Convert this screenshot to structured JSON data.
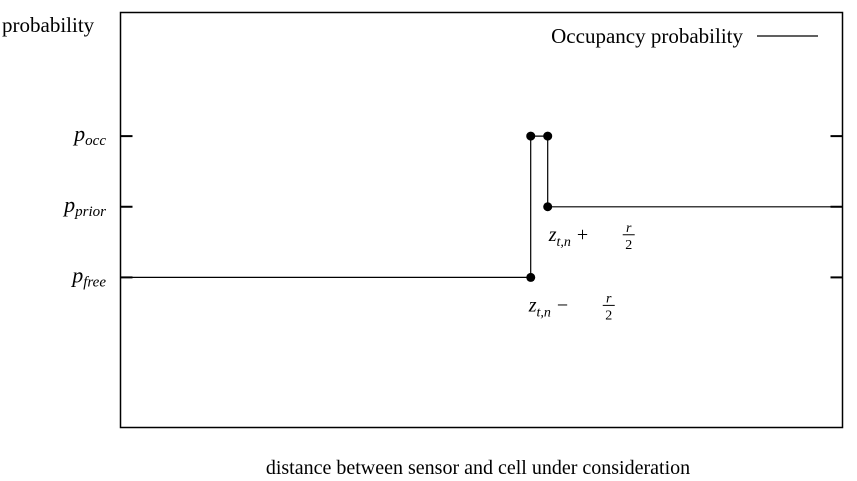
{
  "chart_data": {
    "type": "line",
    "ylabel": "probability",
    "xlabel": "distance between sensor and cell under consideration",
    "legend": {
      "label": "Occupancy probability",
      "position": "top-right"
    },
    "y_levels": [
      {
        "key": "occ",
        "symbol": "p",
        "subscript": "occ",
        "value": 0.9
      },
      {
        "key": "prior",
        "symbol": "p",
        "subscript": "prior",
        "value": 0.5
      },
      {
        "key": "free",
        "symbol": "p",
        "subscript": "free",
        "value": 0.1
      }
    ],
    "ylim": [
      -0.75,
      1.6
    ],
    "xlim": [
      0,
      1
    ],
    "series": [
      {
        "name": "Occupancy probability",
        "x": [
          0,
          0.5682,
          0.5682,
          0.5917,
          0.5917,
          1.0
        ],
        "y": [
          0.1,
          0.1,
          0.9,
          0.9,
          0.5,
          0.5
        ]
      }
    ],
    "markers": [
      {
        "x": 0.5682,
        "y": 0.1
      },
      {
        "x": 0.5682,
        "y": 0.9
      },
      {
        "x": 0.5917,
        "y": 0.9
      },
      {
        "x": 0.5917,
        "y": 0.5
      }
    ],
    "annotations": [
      {
        "id": "lower",
        "x": 0.5682,
        "y": 0.1,
        "base": "z",
        "subscript": "t,n",
        "op": "−",
        "num": "r",
        "den": "2"
      },
      {
        "id": "upper",
        "x": 0.5917,
        "y": 0.5,
        "base": "z",
        "subscript": "t,n",
        "op": "+",
        "num": "r",
        "den": "2"
      }
    ],
    "grid": false
  }
}
